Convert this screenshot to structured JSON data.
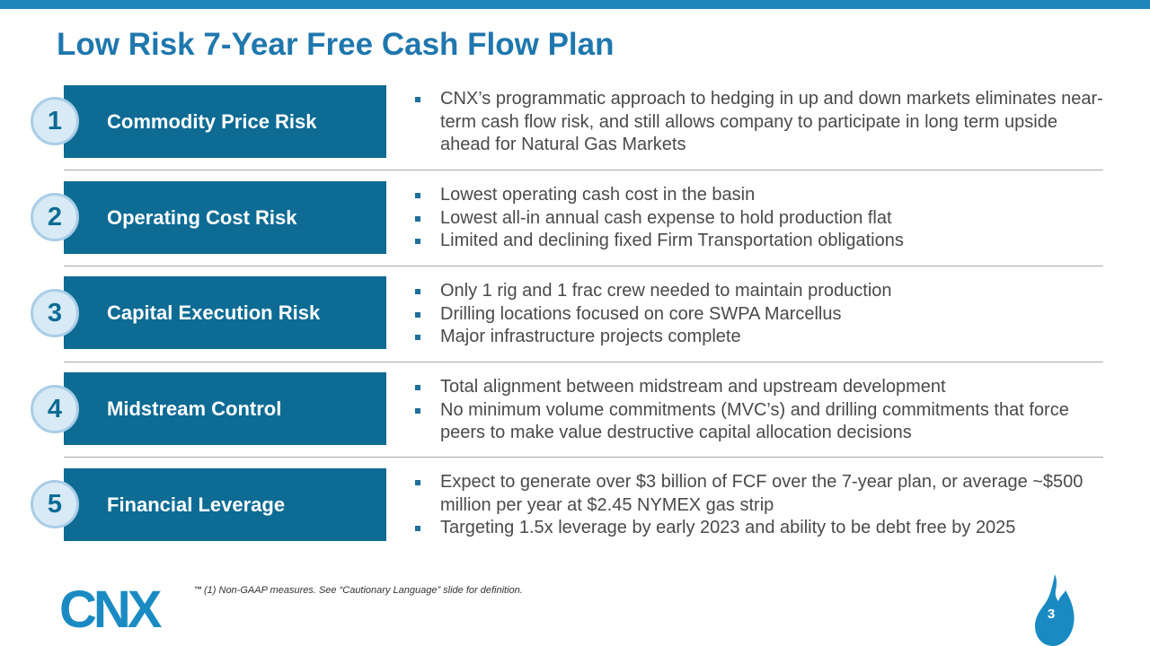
{
  "slide": {
    "title": "Low Risk 7-Year Free Cash Flow Plan",
    "page_number": "3",
    "footnote": "(1)   Non-GAAP measures. See “Cautionary Language” slide for definition.",
    "logo_text": "CNX",
    "trademark": "™"
  },
  "colors": {
    "accent": "#1e86bb",
    "title": "#1f77ad",
    "box": "#0d6b94",
    "circle_fill": "#d7eaf6",
    "text": "#4a4a4a"
  },
  "rows": [
    {
      "number": "1",
      "label": "Commodity Price Risk",
      "bullets": [
        "CNX’s programmatic approach to hedging in up and down markets eliminates near-term cash flow risk, and still allows company to participate in long term upside ahead for Natural Gas Markets"
      ]
    },
    {
      "number": "2",
      "label": "Operating Cost Risk",
      "bullets": [
        "Lowest operating cash cost in the basin",
        "Lowest all-in annual cash expense to hold production flat",
        "Limited and declining fixed Firm Transportation obligations"
      ]
    },
    {
      "number": "3",
      "label": "Capital Execution Risk",
      "bullets": [
        "Only 1 rig and 1 frac crew needed to maintain production",
        "Drilling locations focused on core SWPA Marcellus",
        "Major infrastructure projects complete"
      ]
    },
    {
      "number": "4",
      "label": "Midstream Control",
      "bullets": [
        "Total alignment between midstream and upstream development",
        "No minimum volume commitments (MVC’s) and drilling commitments that force peers to make value destructive capital allocation decisions"
      ]
    },
    {
      "number": "5",
      "label": "Financial Leverage",
      "bullets": [
        "Expect to generate over $3 billion of FCF over the 7-year plan, or average ~$500 million per year at $2.45 NYMEX gas strip",
        "Targeting 1.5x leverage by early 2023 and ability to be debt free by 2025"
      ]
    }
  ]
}
